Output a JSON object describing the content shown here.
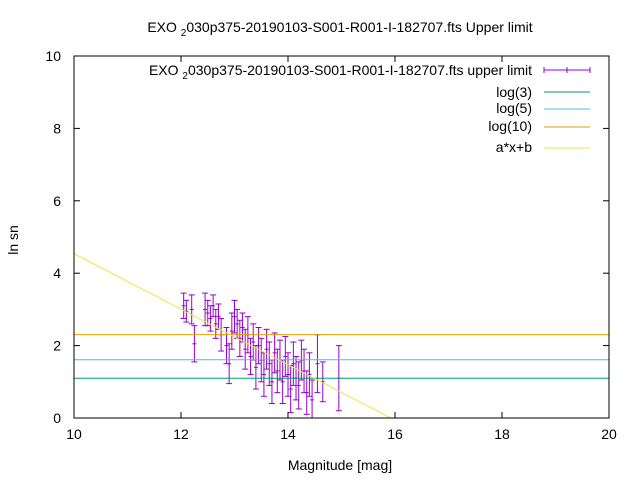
{
  "chart_data": {
    "type": "scatter",
    "title": "EXO 2030p375-20190103-S001-R001-I-182707.fts Upper limit",
    "title_parts": {
      "pre": "EXO ",
      "sub": "2",
      "post": "030p375-20190103-S001-R001-I-182707.fts Upper limit"
    },
    "xlabel": "Magnitude [mag]",
    "ylabel": "ln sn",
    "xlim": [
      10,
      20
    ],
    "ylim": [
      0,
      10
    ],
    "x_ticks": [
      "10",
      "12",
      "14",
      "16",
      "18",
      "20"
    ],
    "y_ticks": [
      "0",
      "2",
      "4",
      "6",
      "8",
      "10"
    ],
    "grid": false,
    "legend_position": "top-right",
    "series": [
      {
        "name": "EXO 2030p375-20190103-S001-R001-I-182707.fts upper limit",
        "name_parts": {
          "pre": "EXO ",
          "sub": "2",
          "post": "030p375-20190103-S001-R001-I-182707.fts upper limit"
        },
        "kind": "errorbars",
        "color": "#9400d3",
        "points": [
          [
            12.05,
            3.1,
            0.35
          ],
          [
            12.1,
            2.95,
            0.3
          ],
          [
            12.2,
            3.0,
            0.4
          ],
          [
            12.25,
            2.05,
            0.5
          ],
          [
            12.45,
            3.0,
            0.45
          ],
          [
            12.5,
            2.9,
            0.35
          ],
          [
            12.55,
            2.75,
            0.35
          ],
          [
            12.6,
            3.1,
            0.3
          ],
          [
            12.65,
            2.6,
            0.4
          ],
          [
            12.7,
            2.8,
            0.35
          ],
          [
            12.75,
            2.3,
            0.45
          ],
          [
            12.85,
            2.0,
            0.5
          ],
          [
            12.9,
            1.5,
            0.55
          ],
          [
            12.95,
            2.4,
            0.5
          ],
          [
            13.0,
            2.8,
            0.45
          ],
          [
            13.05,
            2.6,
            0.4
          ],
          [
            13.1,
            2.2,
            0.5
          ],
          [
            13.15,
            2.5,
            0.4
          ],
          [
            13.2,
            1.9,
            0.55
          ],
          [
            13.25,
            2.3,
            0.5
          ],
          [
            13.3,
            1.7,
            0.5
          ],
          [
            13.35,
            2.1,
            0.5
          ],
          [
            13.4,
            1.4,
            0.6
          ],
          [
            13.45,
            2.0,
            0.5
          ],
          [
            13.5,
            1.6,
            0.6
          ],
          [
            13.55,
            1.2,
            0.6
          ],
          [
            13.6,
            1.9,
            0.55
          ],
          [
            13.65,
            1.5,
            0.6
          ],
          [
            13.7,
            1.0,
            0.6
          ],
          [
            13.75,
            1.8,
            0.55
          ],
          [
            13.8,
            1.3,
            0.6
          ],
          [
            13.85,
            1.6,
            0.55
          ],
          [
            13.9,
            1.0,
            0.6
          ],
          [
            13.95,
            1.7,
            0.55
          ],
          [
            14.0,
            1.2,
            0.6
          ],
          [
            14.05,
            0.8,
            0.65
          ],
          [
            14.1,
            1.5,
            0.6
          ],
          [
            14.15,
            1.1,
            0.6
          ],
          [
            14.2,
            0.9,
            0.65
          ],
          [
            14.25,
            1.6,
            0.55
          ],
          [
            14.3,
            1.3,
            0.6
          ],
          [
            14.35,
            0.7,
            0.6
          ],
          [
            14.4,
            1.2,
            0.6
          ],
          [
            14.45,
            0.5,
            0.55
          ],
          [
            14.55,
            1.5,
            0.8
          ],
          [
            14.65,
            1.0,
            0.55
          ],
          [
            14.95,
            1.1,
            0.9
          ]
        ]
      },
      {
        "name": "log(3)",
        "kind": "hline",
        "y": 1.0986,
        "color": "#009e73"
      },
      {
        "name": "log(5)",
        "kind": "hline",
        "y": 1.6094,
        "color": "#56b4e9"
      },
      {
        "name": "log(10)",
        "kind": "hline",
        "y": 2.3026,
        "color": "#e69f00"
      },
      {
        "name": "a*x+b",
        "kind": "line",
        "x": [
          10,
          15.92
        ],
        "y": [
          4.54,
          0
        ],
        "color": "#f0e442"
      }
    ]
  }
}
